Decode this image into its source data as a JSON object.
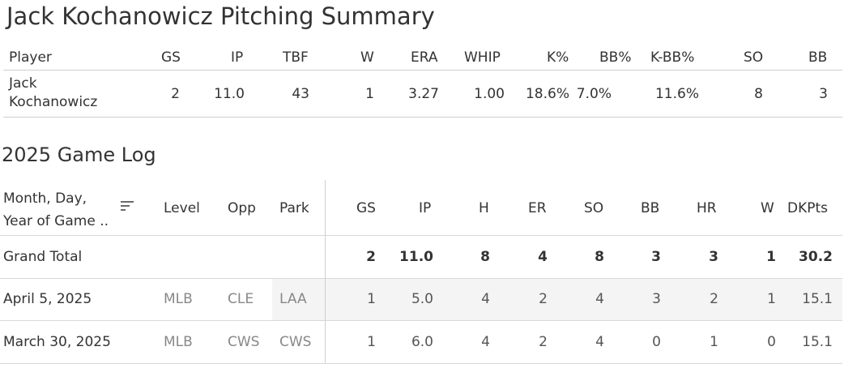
{
  "title": "Jack Kochanowicz Pitching Summary",
  "summary": {
    "headers": {
      "player": "Player",
      "gs": "GS",
      "ip": "IP",
      "tbf": "TBF",
      "w": "W",
      "era": "ERA",
      "whip": "WHIP",
      "kpct": "K%",
      "bbpct": "BB%",
      "kbbpct": "K-BB%",
      "so": "SO",
      "bb": "BB"
    },
    "row": {
      "player": "Jack Kochanowicz",
      "gs": "2",
      "ip": "11.0",
      "tbf": "43",
      "w": "1",
      "era": "3.27",
      "whip": "1.00",
      "kpct": "18.6%",
      "bbpct": "7.0%",
      "kbbpct": "11.6%",
      "so": "8",
      "bb": "3"
    }
  },
  "game_log": {
    "title": "2025 Game Log",
    "headers": {
      "date": "Month, Day, Year of Game ..",
      "level": "Level",
      "opp": "Opp",
      "park": "Park",
      "gs": "GS",
      "ip": "IP",
      "h": "H",
      "er": "ER",
      "so": "SO",
      "bb": "BB",
      "hr": "HR",
      "w": "W",
      "dkpts": "DKPts"
    },
    "grand_total": {
      "label": "Grand Total",
      "gs": "2",
      "ip": "11.0",
      "h": "8",
      "er": "4",
      "so": "8",
      "bb": "3",
      "hr": "3",
      "w": "1",
      "dkpts": "30.2"
    },
    "rows": [
      {
        "date": "April 5, 2025",
        "level": "MLB",
        "opp": "CLE",
        "park": "LAA",
        "gs": "1",
        "ip": "5.0",
        "h": "4",
        "er": "2",
        "so": "4",
        "bb": "3",
        "hr": "2",
        "w": "1",
        "dkpts": "15.1"
      },
      {
        "date": "March 30, 2025",
        "level": "MLB",
        "opp": "CWS",
        "park": "CWS",
        "gs": "1",
        "ip": "6.0",
        "h": "4",
        "er": "2",
        "so": "4",
        "bb": "0",
        "hr": "1",
        "w": "0",
        "dkpts": "15.1"
      }
    ]
  },
  "icons": {
    "sort": "sort-descending-icon"
  }
}
